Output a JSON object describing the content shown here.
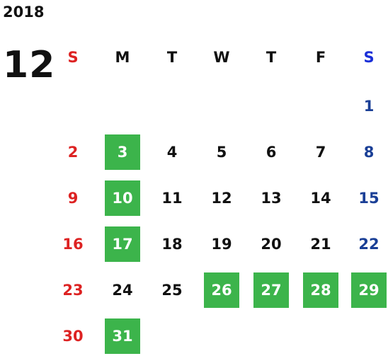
{
  "calendar": {
    "year": "2018",
    "month": "12",
    "weekdays": [
      "S",
      "M",
      "T",
      "W",
      "T",
      "F",
      "S"
    ],
    "colors": {
      "sunday": "#dd2222",
      "saturday": "#1a3f96",
      "weekday": "#111111",
      "highlight_bg": "#3cb44b",
      "highlight_text": "#ffffff",
      "saturday_header": "#1a2fd8"
    },
    "days": [
      {
        "day": "1",
        "weekday": 6,
        "highlighted": false
      },
      {
        "day": "2",
        "weekday": 0,
        "highlighted": false
      },
      {
        "day": "3",
        "weekday": 1,
        "highlighted": true
      },
      {
        "day": "4",
        "weekday": 2,
        "highlighted": false
      },
      {
        "day": "5",
        "weekday": 3,
        "highlighted": false
      },
      {
        "day": "6",
        "weekday": 4,
        "highlighted": false
      },
      {
        "day": "7",
        "weekday": 5,
        "highlighted": false
      },
      {
        "day": "8",
        "weekday": 6,
        "highlighted": false
      },
      {
        "day": "9",
        "weekday": 0,
        "highlighted": false
      },
      {
        "day": "10",
        "weekday": 1,
        "highlighted": true
      },
      {
        "day": "11",
        "weekday": 2,
        "highlighted": false
      },
      {
        "day": "12",
        "weekday": 3,
        "highlighted": false
      },
      {
        "day": "13",
        "weekday": 4,
        "highlighted": false
      },
      {
        "day": "14",
        "weekday": 5,
        "highlighted": false
      },
      {
        "day": "15",
        "weekday": 6,
        "highlighted": false
      },
      {
        "day": "16",
        "weekday": 0,
        "highlighted": false
      },
      {
        "day": "17",
        "weekday": 1,
        "highlighted": true
      },
      {
        "day": "18",
        "weekday": 2,
        "highlighted": false
      },
      {
        "day": "19",
        "weekday": 3,
        "highlighted": false
      },
      {
        "day": "20",
        "weekday": 4,
        "highlighted": false
      },
      {
        "day": "21",
        "weekday": 5,
        "highlighted": false
      },
      {
        "day": "22",
        "weekday": 6,
        "highlighted": false
      },
      {
        "day": "23",
        "weekday": 0,
        "highlighted": false
      },
      {
        "day": "24",
        "weekday": 1,
        "highlighted": false
      },
      {
        "day": "25",
        "weekday": 2,
        "highlighted": false
      },
      {
        "day": "26",
        "weekday": 3,
        "highlighted": true
      },
      {
        "day": "27",
        "weekday": 4,
        "highlighted": true
      },
      {
        "day": "28",
        "weekday": 5,
        "highlighted": true
      },
      {
        "day": "29",
        "weekday": 6,
        "highlighted": true
      },
      {
        "day": "30",
        "weekday": 0,
        "highlighted": false
      },
      {
        "day": "31",
        "weekday": 1,
        "highlighted": true
      }
    ]
  }
}
